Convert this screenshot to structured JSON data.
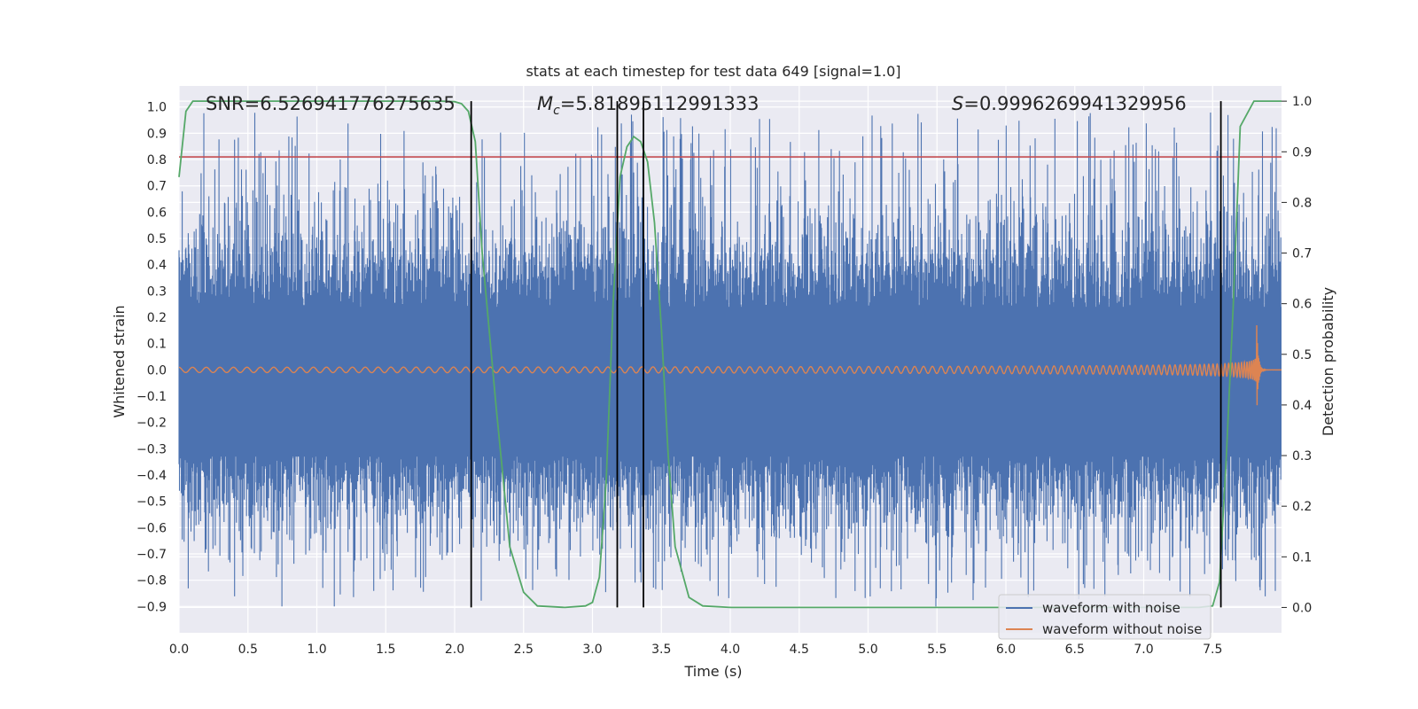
{
  "chart_data": {
    "type": "line",
    "title": "stats at each timestep for test data 649 [signal=1.0]",
    "xlabel": "Time (s)",
    "ylabel_left": "Whitened strain",
    "ylabel_right": "Detection probability",
    "xlim": [
      0.0,
      8.0
    ],
    "ylim_left": [
      -1.0,
      1.08
    ],
    "ylim_right": [
      -0.05,
      1.03
    ],
    "x_ticks": [
      "0.0",
      "0.5",
      "1.0",
      "1.5",
      "2.0",
      "2.5",
      "3.0",
      "3.5",
      "4.0",
      "4.5",
      "5.0",
      "5.5",
      "6.0",
      "6.5",
      "7.0",
      "7.5"
    ],
    "y_left_ticks": [
      "1.0",
      "0.9",
      "0.8",
      "0.7",
      "0.6",
      "0.5",
      "0.4",
      "0.3",
      "0.2",
      "0.1",
      "0.0",
      "−0.1",
      "−0.2",
      "−0.3",
      "−0.4",
      "−0.5",
      "−0.6",
      "−0.7",
      "−0.8",
      "−0.9"
    ],
    "y_right_ticks": [
      "1.0",
      "0.9",
      "0.8",
      "0.7",
      "0.6",
      "0.5",
      "0.4",
      "0.3",
      "0.2",
      "0.1",
      "0.0"
    ],
    "annotations": {
      "snr": "SNR=6.526941776275635",
      "mc_symbol": "M",
      "mc_sub": "c",
      "mc_value": "=5.81895112991333",
      "s_symbol": "S",
      "s_value": "=0.9996269941329956"
    },
    "threshold_left": 0.81,
    "vertical_lines_x": [
      2.12,
      3.18,
      3.37,
      7.56
    ],
    "legend": {
      "placement": "lower-right",
      "entries": [
        "waveform with noise",
        "waveform without noise"
      ]
    },
    "series": [
      {
        "name": "waveform with noise",
        "color": "#4c72b0",
        "axis": "left",
        "description_only": "dense noise band roughly between -0.9 and 1.0"
      },
      {
        "name": "waveform without noise",
        "color": "#dd8452",
        "axis": "left",
        "chirp_start_amp": 0.01,
        "chirp_end_time": 7.82,
        "chirp_peak_amp": 0.17
      },
      {
        "axis": "right",
        "color": "#55a868",
        "x": [
          0.0,
          0.05,
          0.1,
          0.2,
          0.5,
          1.0,
          1.5,
          1.9,
          2.0,
          2.05,
          2.1,
          2.15,
          2.2,
          2.3,
          2.4,
          2.5,
          2.6,
          2.8,
          2.95,
          3.0,
          3.05,
          3.1,
          3.15,
          3.2,
          3.25,
          3.3,
          3.35,
          3.4,
          3.45,
          3.5,
          3.55,
          3.6,
          3.7,
          3.8,
          4.0,
          5.0,
          6.0,
          7.0,
          7.4,
          7.5,
          7.55,
          7.6,
          7.65,
          7.7,
          7.8,
          8.0
        ],
        "y": [
          0.85,
          0.98,
          1.0,
          1.0,
          1.0,
          1.0,
          1.0,
          1.0,
          0.999,
          0.995,
          0.98,
          0.92,
          0.7,
          0.4,
          0.12,
          0.03,
          0.003,
          0.0,
          0.003,
          0.01,
          0.06,
          0.25,
          0.6,
          0.85,
          0.91,
          0.93,
          0.92,
          0.88,
          0.76,
          0.55,
          0.3,
          0.12,
          0.02,
          0.003,
          0.0,
          0.0,
          0.0,
          0.0,
          0.0,
          0.003,
          0.05,
          0.3,
          0.6,
          0.95,
          1.0,
          1.0
        ]
      }
    ],
    "colors": {
      "axes_bg": "#eaeaf2",
      "grid": "#ffffff",
      "threshold": "#c44e52",
      "vline": "#000000"
    }
  }
}
